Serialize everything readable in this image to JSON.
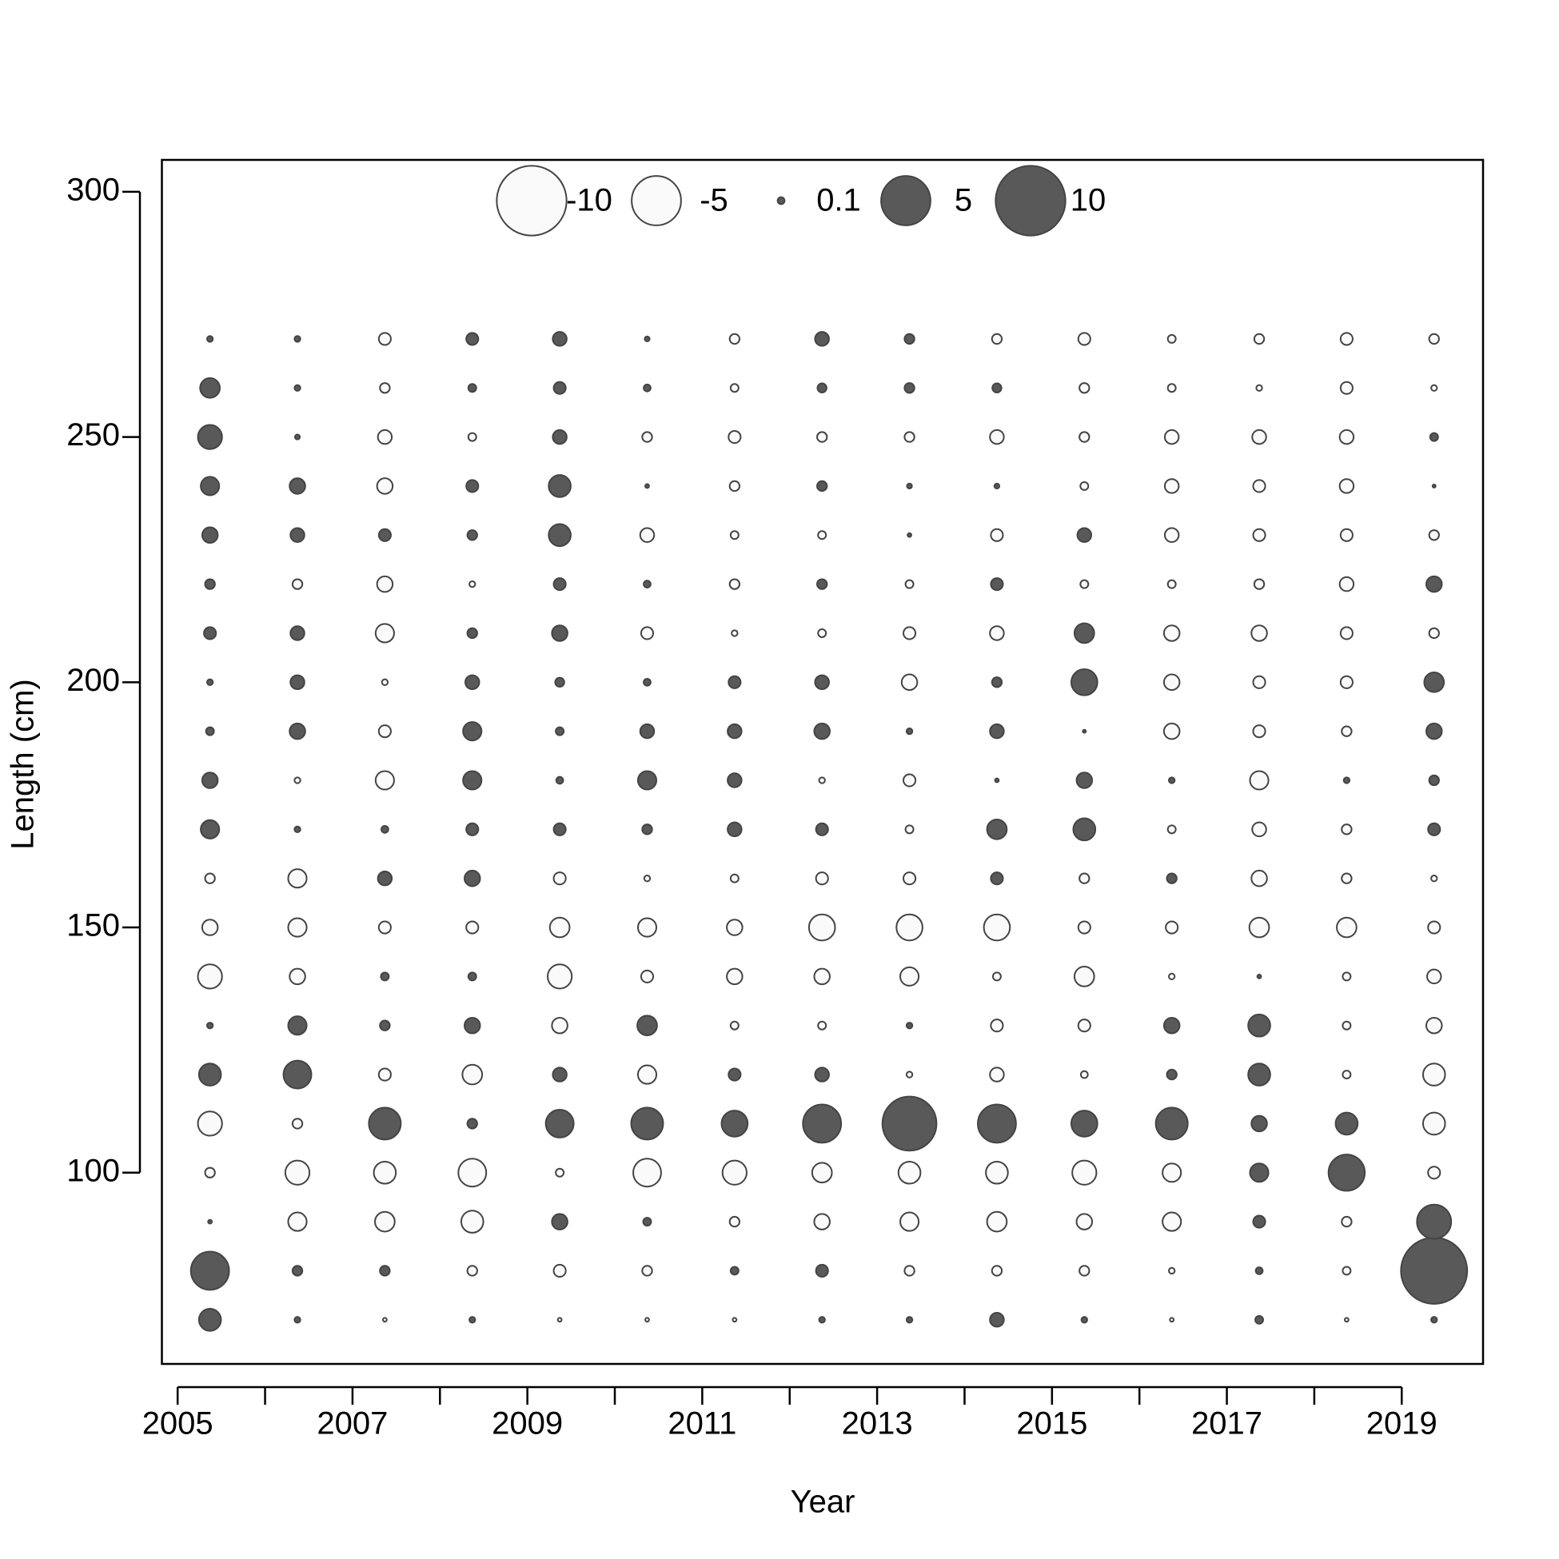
{
  "chart_data": {
    "type": "bubble",
    "xlabel": "Year",
    "ylabel": "Length (cm)",
    "x": [
      2005.37,
      2006.37,
      2007.37,
      2008.37,
      2009.37,
      2010.37,
      2011.37,
      2012.37,
      2013.37,
      2014.37,
      2015.37,
      2016.37,
      2017.37,
      2018.37,
      2019.37
    ],
    "y": [
      70,
      80,
      90,
      100,
      110,
      120,
      130,
      140,
      150,
      160,
      170,
      180,
      190,
      200,
      210,
      220,
      230,
      240,
      250,
      260,
      270
    ],
    "values": [
      [
        1.0,
        3.0,
        0.03,
        -0.2,
        -1.2,
        1.0,
        0.07,
        -1.2,
        -0.5,
        -0.2,
        0.7,
        0.5,
        0.13,
        0.07,
        0.3,
        0.2,
        0.5,
        0.7,
        1.2,
        0.8,
        0.07
      ],
      [
        0.07,
        0.2,
        -0.7,
        -1.2,
        -0.2,
        1.6,
        0.7,
        -0.5,
        -0.7,
        -0.7,
        0.07,
        -0.07,
        0.5,
        0.4,
        0.4,
        -0.2,
        0.4,
        0.5,
        0.05,
        0.07,
        0.07
      ],
      [
        -0.03,
        0.2,
        -0.8,
        -1.0,
        2.1,
        -0.3,
        0.2,
        0.13,
        -0.3,
        0.4,
        0.1,
        -0.7,
        -0.3,
        -0.07,
        -0.7,
        -0.5,
        0.3,
        -0.5,
        -0.4,
        -0.2,
        -0.3
      ],
      [
        0.07,
        -0.2,
        -1.0,
        -1.6,
        0.2,
        -0.8,
        0.5,
        0.13,
        -0.3,
        0.5,
        0.3,
        0.7,
        0.7,
        0.4,
        0.2,
        -0.07,
        0.2,
        0.3,
        -0.13,
        0.13,
        0.3
      ],
      [
        -0.03,
        -0.3,
        0.5,
        -0.13,
        1.6,
        0.4,
        -0.5,
        -1.2,
        -0.8,
        -0.3,
        0.3,
        0.1,
        0.13,
        0.17,
        0.5,
        0.3,
        1.0,
        1.0,
        0.4,
        0.3,
        0.4
      ],
      [
        -0.03,
        -0.2,
        0.13,
        -1.6,
        2.1,
        -0.7,
        0.8,
        -0.3,
        -0.7,
        -0.07,
        0.2,
        0.7,
        0.4,
        0.1,
        -0.3,
        0.1,
        -0.4,
        0.03,
        -0.2,
        0.1,
        0.05
      ],
      [
        -0.03,
        0.13,
        -0.2,
        -1.2,
        1.4,
        0.3,
        -0.13,
        -0.5,
        -0.5,
        -0.13,
        0.4,
        0.4,
        0.4,
        0.3,
        -0.07,
        -0.2,
        -0.13,
        -0.2,
        -0.3,
        -0.13,
        -0.2
      ],
      [
        0.07,
        0.3,
        -0.5,
        -0.8,
        3.0,
        0.4,
        -0.13,
        -0.5,
        -1.4,
        -0.3,
        0.3,
        -0.07,
        0.5,
        0.4,
        -0.13,
        0.2,
        -0.13,
        0.2,
        -0.2,
        0.17,
        0.4
      ],
      [
        0.07,
        -0.2,
        -0.7,
        -1.0,
        6.0,
        -0.07,
        0.07,
        -0.7,
        -1.4,
        -0.3,
        -0.13,
        -0.3,
        0.07,
        -0.5,
        -0.3,
        -0.13,
        0.03,
        0.05,
        -0.2,
        0.2,
        0.2
      ],
      [
        0.4,
        -0.2,
        -0.8,
        -1.0,
        3.0,
        -0.4,
        -0.3,
        -0.13,
        -1.4,
        0.3,
        0.8,
        0.03,
        0.4,
        0.2,
        -0.4,
        0.3,
        -0.3,
        0.05,
        -0.4,
        0.17,
        -0.2
      ],
      [
        0.07,
        -0.2,
        -0.5,
        -1.2,
        1.4,
        -0.1,
        -0.3,
        -0.8,
        -0.3,
        -0.2,
        1.0,
        0.5,
        0.02,
        1.4,
        0.8,
        -0.13,
        0.4,
        -0.13,
        -0.2,
        -0.2,
        -0.3
      ],
      [
        -0.03,
        -0.07,
        -0.7,
        -0.7,
        2.1,
        0.2,
        0.5,
        -0.07,
        -0.3,
        0.2,
        -0.13,
        0.07,
        -0.5,
        -0.5,
        -0.5,
        -0.13,
        -0.4,
        -0.4,
        -0.4,
        -0.13,
        -0.13
      ],
      [
        0.13,
        0.1,
        0.3,
        0.7,
        0.5,
        1.0,
        1.0,
        0.03,
        -0.8,
        -0.5,
        -0.4,
        -0.7,
        -0.3,
        -0.3,
        -0.5,
        -0.2,
        -0.3,
        -0.3,
        -0.4,
        -0.07,
        -0.2
      ],
      [
        -0.03,
        -0.13,
        -0.2,
        2.7,
        1.0,
        -0.13,
        -0.13,
        -0.13,
        -0.8,
        -0.2,
        -0.2,
        0.07,
        -0.2,
        -0.3,
        -0.3,
        -0.4,
        -0.3,
        -0.4,
        -0.4,
        -0.3,
        -0.3
      ],
      [
        0.07,
        9.0,
        2.4,
        -0.3,
        -1.0,
        -1.0,
        -0.5,
        -0.4,
        -0.3,
        -0.07,
        0.3,
        0.2,
        0.5,
        0.8,
        -0.2,
        0.5,
        -0.2,
        0.02,
        0.13,
        -0.07,
        -0.2
      ]
    ],
    "xlim": [
      2004.82,
      2019.93
    ],
    "xticks": [
      2005,
      2007,
      2009,
      2011,
      2013,
      2015,
      2017,
      2019
    ],
    "xminor_ticks": [
      2006,
      2008,
      2010,
      2012,
      2014,
      2016,
      2018
    ],
    "ylim": [
      61,
      306.5
    ],
    "yticks": [
      100,
      150,
      200,
      250,
      300
    ],
    "legend": {
      "position": "top",
      "values": [
        -10,
        -5,
        0.1,
        5,
        10
      ]
    },
    "colors": {
      "positive": "#595959",
      "negative": "#fafafa",
      "outline": "#444444"
    }
  }
}
